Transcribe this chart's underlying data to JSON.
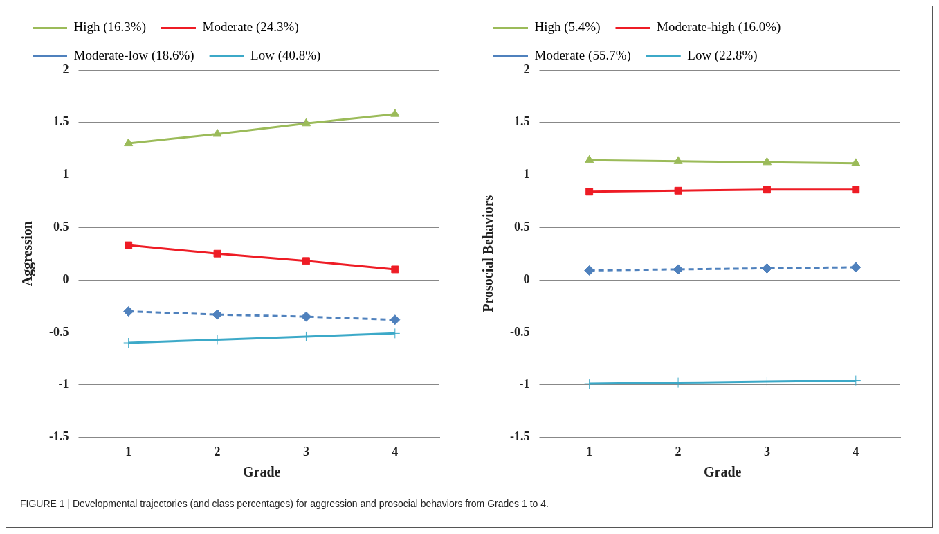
{
  "chart_data": [
    {
      "type": "line",
      "categories": [
        "1",
        "2",
        "3",
        "4"
      ],
      "xlabel": "Grade",
      "ylabel": "Aggression",
      "ylim": [
        -1.5,
        2
      ],
      "yticks": [
        -1.5,
        -1,
        -0.5,
        0,
        0.5,
        1,
        1.5,
        2
      ],
      "grid": "y",
      "legend": "top",
      "series": [
        {
          "name": "High (16.3%)",
          "color": "#9bbb59",
          "marker": "triangle",
          "line_style": "solid",
          "values": [
            1.3,
            1.39,
            1.49,
            1.58
          ]
        },
        {
          "name": "Moderate (24.3%)",
          "color": "#ee1c25",
          "marker": "square",
          "line_style": "solid",
          "values": [
            0.33,
            0.25,
            0.18,
            0.1
          ]
        },
        {
          "name": "Moderate-low (18.6%)",
          "color": "#4f81bd",
          "marker": "diamond",
          "line_style": "dashed",
          "values": [
            -0.3,
            -0.33,
            -0.35,
            -0.38
          ]
        },
        {
          "name": "Low (40.8%)",
          "color": "#3ca9c8",
          "marker": "cross",
          "line_style": "solid",
          "values": [
            -0.6,
            -0.57,
            -0.54,
            -0.51
          ]
        }
      ]
    },
    {
      "type": "line",
      "categories": [
        "1",
        "2",
        "3",
        "4"
      ],
      "xlabel": "Grade",
      "ylabel": "Prosocial Behaviors",
      "ylim": [
        -1.5,
        2
      ],
      "yticks": [
        -1.5,
        -1,
        -0.5,
        0,
        0.5,
        1,
        1.5,
        2
      ],
      "grid": "y",
      "legend": "top",
      "annotations": [
        "FIGURE 1 | Developmental trajectories (and class percentages) for aggression and prosocial behaviors from Grades 1 to 4."
      ],
      "series": [
        {
          "name": "High (5.4%)",
          "color": "#9bbb59",
          "marker": "triangle",
          "line_style": "solid",
          "values": [
            1.14,
            1.13,
            1.12,
            1.11
          ]
        },
        {
          "name": "Moderate-high (16.0%)",
          "color": "#ee1c25",
          "marker": "square",
          "line_style": "solid",
          "values": [
            0.84,
            0.85,
            0.86,
            0.86
          ]
        },
        {
          "name": "Moderate (55.7%)",
          "color": "#4f81bd",
          "marker": "diamond",
          "line_style": "dashed",
          "values": [
            0.09,
            0.1,
            0.11,
            0.12
          ]
        },
        {
          "name": "Low (22.8%)",
          "color": "#3ca9c8",
          "marker": "cross",
          "line_style": "solid",
          "values": [
            -0.99,
            -0.98,
            -0.97,
            -0.96
          ]
        }
      ]
    }
  ]
}
